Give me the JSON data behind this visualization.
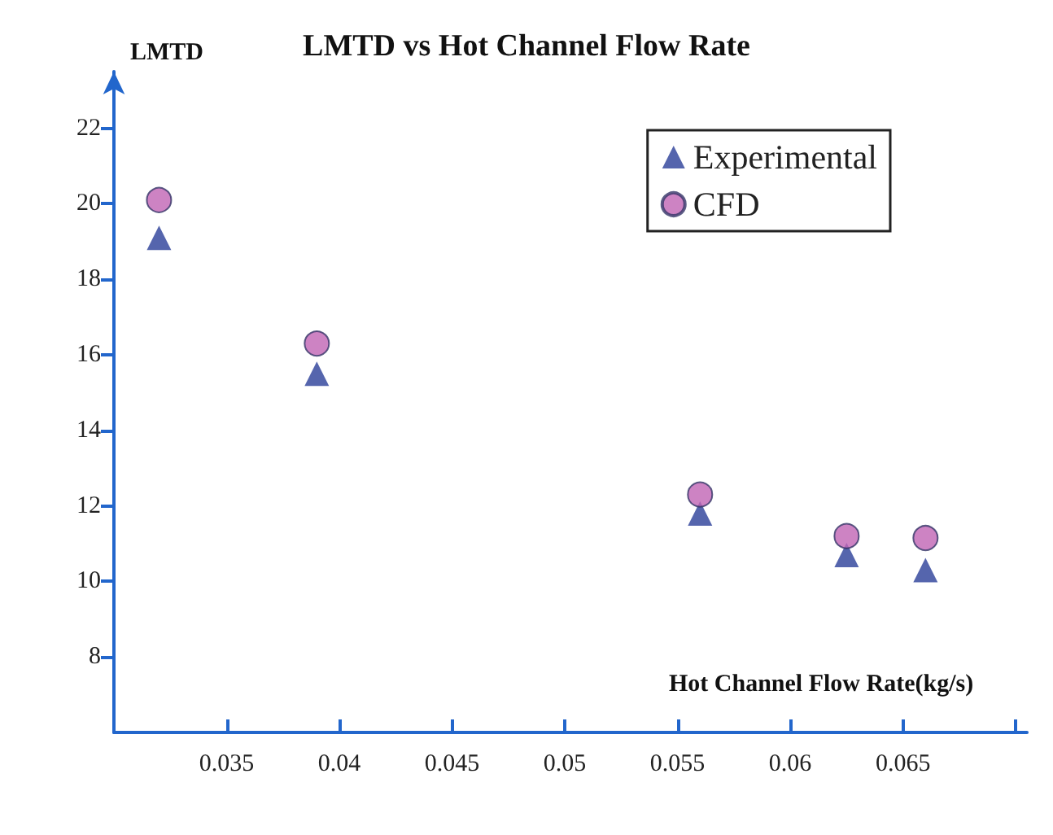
{
  "chart_data": {
    "type": "scatter",
    "title": "LMTD vs Hot Channel Flow Rate",
    "xlabel": "Hot Channel Flow Rate(kg/s)",
    "ylabel": "LMTD",
    "x": [
      0.032,
      0.039,
      0.056,
      0.0625,
      0.066
    ],
    "series": [
      {
        "name": "Experimental",
        "color": "#2b3f99",
        "marker": "triangle",
        "values": [
          19.1,
          15.5,
          11.8,
          10.7,
          10.3
        ]
      },
      {
        "name": "CFD",
        "color": "#c064b4",
        "marker": "circle",
        "values": [
          20.1,
          16.3,
          12.3,
          11.2,
          11.15
        ]
      }
    ],
    "xlim": [
      0.03,
      0.0705
    ],
    "xticks": [
      0.035,
      0.04,
      0.045,
      0.05,
      0.055,
      0.06,
      0.065,
      {
        "value": 0.07,
        "label": null
      }
    ],
    "ylim": [
      6,
      23.5
    ],
    "yticks": [
      8,
      10,
      12,
      14,
      16,
      18,
      20,
      22
    ],
    "grid": false,
    "legend": "top right"
  }
}
